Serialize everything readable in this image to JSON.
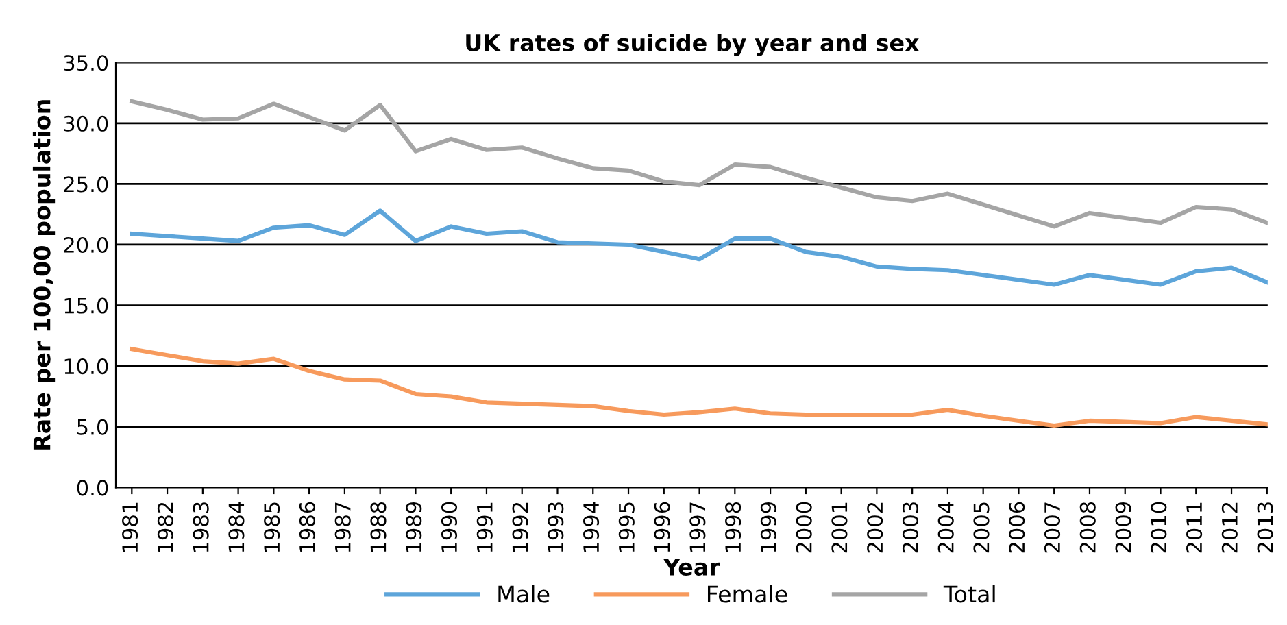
{
  "chart_data": {
    "type": "line",
    "title": "UK rates of suicide by year and sex",
    "xlabel": "Year",
    "ylabel": "Rate per 100,00 population",
    "categories": [
      "1981",
      "1982",
      "1983",
      "1984",
      "1985",
      "1986",
      "1987",
      "1988",
      "1989",
      "1990",
      "1991",
      "1992",
      "1993",
      "1994",
      "1995",
      "1996",
      "1997",
      "1998",
      "1999",
      "2000",
      "2001",
      "2002",
      "2003",
      "2004",
      "2005",
      "2006",
      "2007",
      "2008",
      "2009",
      "2010",
      "2011",
      "2012",
      "2013"
    ],
    "series": [
      {
        "name": "Male",
        "color": "#5da5da",
        "values": [
          20.9,
          20.7,
          20.5,
          20.3,
          21.4,
          21.6,
          20.8,
          22.8,
          20.3,
          21.5,
          20.9,
          21.1,
          20.2,
          20.1,
          20.0,
          19.4,
          18.8,
          20.5,
          20.5,
          19.4,
          19.0,
          18.2,
          18.0,
          17.9,
          17.5,
          17.1,
          16.7,
          17.5,
          17.1,
          16.7,
          17.8,
          18.1,
          16.9
        ]
      },
      {
        "name": "Female",
        "color": "#f79a5c",
        "values": [
          11.4,
          10.9,
          10.4,
          10.2,
          10.6,
          9.6,
          8.9,
          8.8,
          7.7,
          7.5,
          7.0,
          6.9,
          6.8,
          6.7,
          6.3,
          6.0,
          6.2,
          6.5,
          6.1,
          6.0,
          6.0,
          6.0,
          6.0,
          6.4,
          5.9,
          5.5,
          5.1,
          5.5,
          5.4,
          5.3,
          5.8,
          5.5,
          5.2
        ]
      },
      {
        "name": "Total",
        "color": "#a5a5a5",
        "values": [
          31.8,
          31.1,
          30.3,
          30.4,
          31.6,
          30.5,
          29.4,
          31.5,
          27.7,
          28.7,
          27.8,
          28.0,
          27.1,
          26.3,
          26.1,
          25.2,
          24.9,
          26.6,
          26.4,
          25.5,
          24.7,
          23.9,
          23.6,
          24.2,
          23.3,
          22.4,
          21.5,
          22.6,
          22.2,
          21.8,
          23.1,
          22.9,
          21.8
        ]
      }
    ],
    "ylim": [
      0,
      35
    ],
    "yticks": [
      {
        "value": 0,
        "label": "0.0"
      },
      {
        "value": 5,
        "label": "5.0"
      },
      {
        "value": 10,
        "label": "10.0"
      },
      {
        "value": 15,
        "label": "15.0"
      },
      {
        "value": 20,
        "label": "20.0"
      },
      {
        "value": 25,
        "label": "25.0"
      },
      {
        "value": 30,
        "label": "30.0"
      },
      {
        "value": 35,
        "label": "35.0"
      }
    ],
    "grid": "y",
    "legend": "bottom",
    "marker": "none",
    "line_style": "solid"
  }
}
